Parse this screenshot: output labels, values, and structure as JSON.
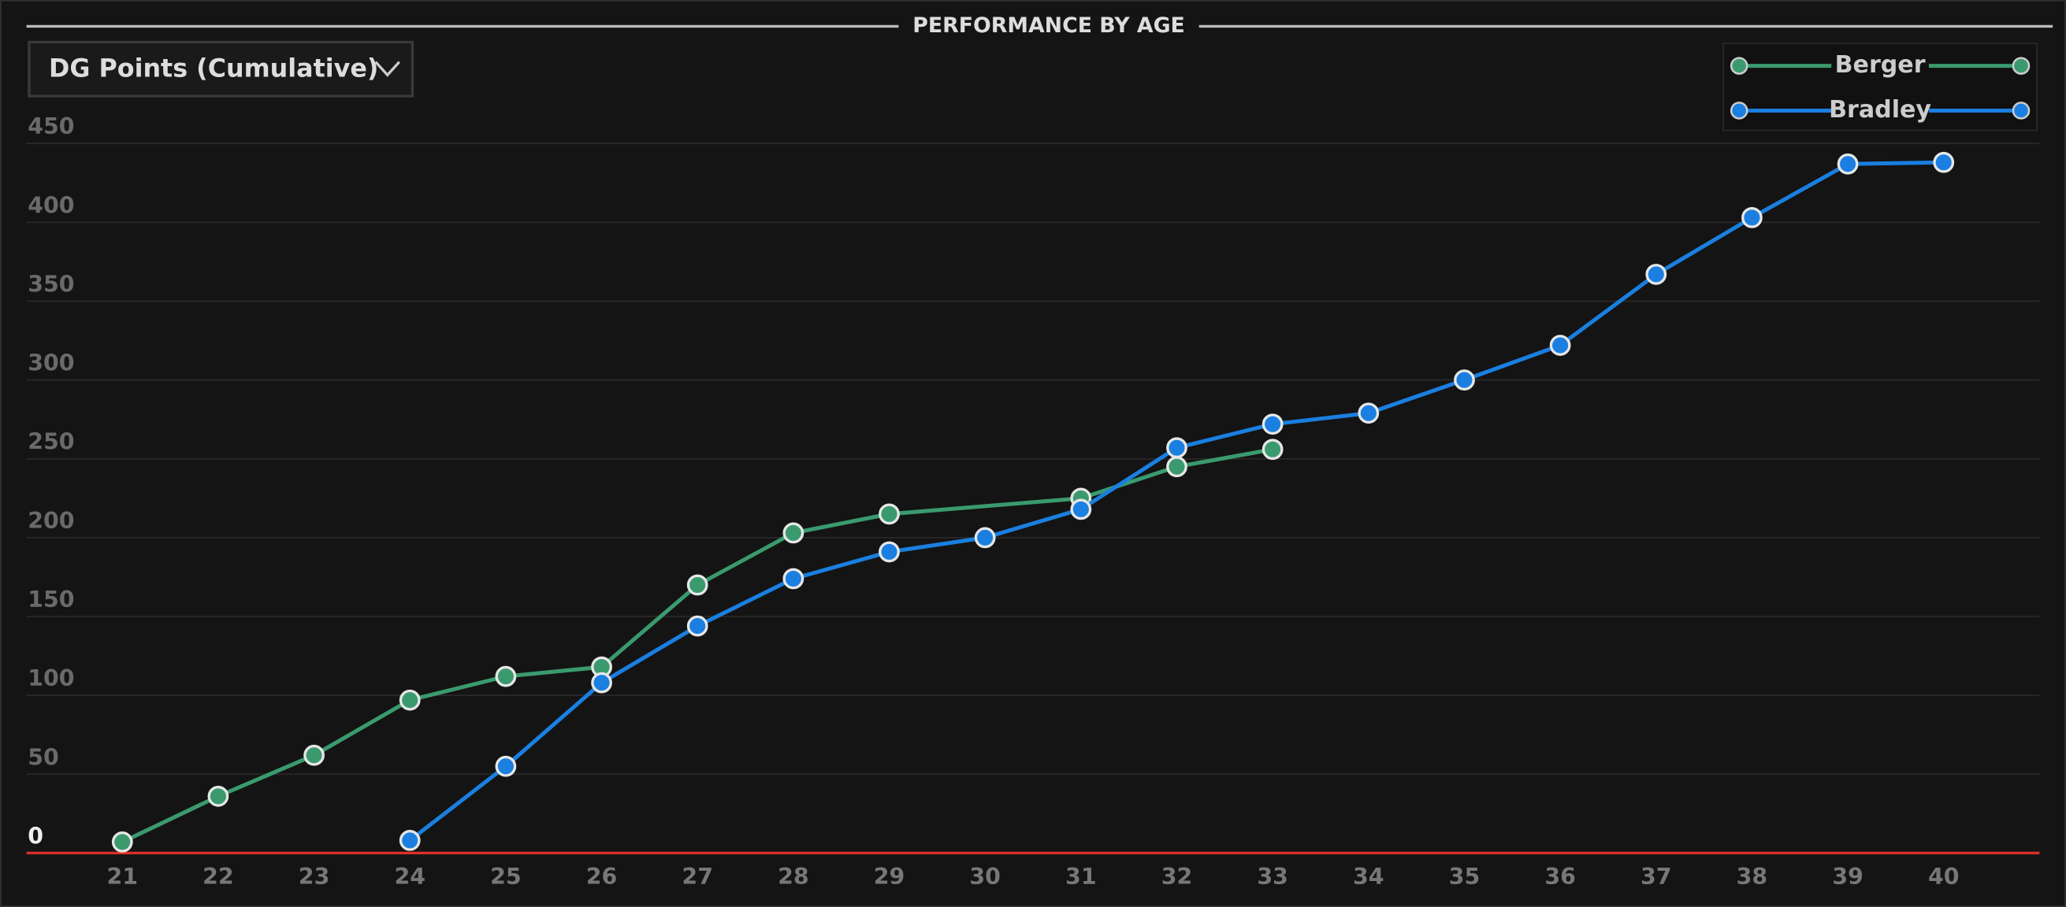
{
  "dropdown": "DG Points (Cumulative)",
  "chart_data": {
    "type": "line",
    "title": "PERFORMANCE BY AGE",
    "xlim": [
      20,
      41
    ],
    "xticks": [
      21,
      22,
      23,
      24,
      25,
      26,
      27,
      28,
      29,
      30,
      31,
      32,
      33,
      34,
      35,
      36,
      37,
      38,
      39,
      40
    ],
    "ylim": [
      0,
      450
    ],
    "yticks": [
      0,
      50,
      100,
      150,
      200,
      250,
      300,
      350,
      400,
      450
    ],
    "grid": true,
    "legend": "upper right",
    "series": [
      {
        "name": "Berger",
        "color": "#3a9a6e",
        "x": [
          21,
          22,
          23,
          24,
          25,
          26,
          27,
          28,
          29,
          31,
          32,
          33
        ],
        "values": [
          7,
          36,
          62,
          97,
          112,
          118,
          170,
          203,
          215,
          225,
          245,
          256
        ]
      },
      {
        "name": "Bradley",
        "color": "#1a7fe0",
        "x": [
          24,
          25,
          26,
          27,
          28,
          29,
          30,
          31,
          32,
          33,
          34,
          35,
          36,
          37,
          38,
          39,
          40
        ],
        "values": [
          8,
          55,
          108,
          144,
          174,
          191,
          200,
          218,
          257,
          272,
          279,
          300,
          322,
          367,
          403,
          437,
          438
        ]
      }
    ]
  }
}
